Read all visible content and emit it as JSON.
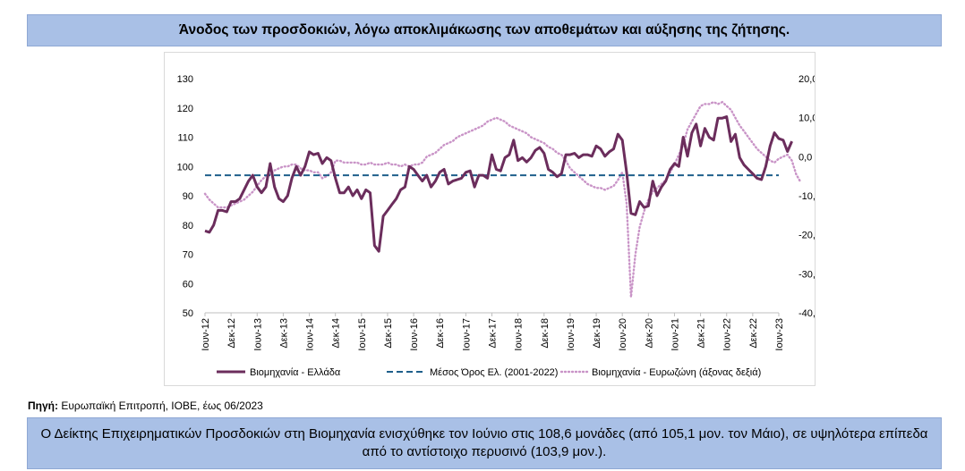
{
  "title": "Άνοδος των προσδοκιών, λόγω αποκλιμάκωσης των αποθεμάτων και αύξησης της ζήτησης.",
  "source_label": "Πηγή:",
  "source_text": "Ευρωπαϊκή Επιτροπή, ΙΟΒΕ, έως 06/2023",
  "summary": "Ο Δείκτης Επιχειρηματικών Προσδοκιών στη Βιομηχανία ενισχύθηκε τον Ιούνιο στις 108,6 μονάδες (από 105,1 μον. τον Μάιο), σε υψηλότερα επίπεδα από το αντίστοιχο περυσινό (103,9 μον.).",
  "colors": {
    "greece": "#6b2d5c",
    "mean": "#1f5f8b",
    "eurozone": "#c994c7",
    "bar_bg": "#a9c0e6"
  },
  "chart_data": {
    "type": "line",
    "x_start": "Ιουν-12",
    "x_end": "Ιουν-23",
    "x_tick_labels": [
      "Ιουν-12",
      "Δεκ-12",
      "Ιουν-13",
      "Δεκ-13",
      "Ιουν-14",
      "Δεκ-14",
      "Ιουν-15",
      "Δεκ-15",
      "Ιουν-16",
      "Δεκ-16",
      "Ιουν-17",
      "Δεκ-17",
      "Ιουν-18",
      "Δεκ-18",
      "Ιουν-19",
      "Δεκ-19",
      "Ιουν-20",
      "Δεκ-20",
      "Ιουν-21",
      "Δεκ-21",
      "Ιουν-22",
      "Δεκ-22",
      "Ιουν-23"
    ],
    "y_left": {
      "min": 50,
      "max": 130,
      "step": 10,
      "ticks": [
        "130",
        "120",
        "110",
        "100",
        "90",
        "80",
        "70",
        "60",
        "50"
      ]
    },
    "y_right": {
      "min": -40,
      "max": 20,
      "step": 10,
      "ticks": [
        "20,0",
        "10,0",
        "0,0",
        "-10,0",
        "-20,0",
        "-30,0",
        "-40,0"
      ]
    },
    "grid": false,
    "legend_position": "bottom",
    "series": [
      {
        "name": "Βιομηχανία  - Ελλάδα",
        "axis": "left",
        "style": "solid",
        "values": [
          78,
          77.5,
          80,
          85,
          85,
          84.5,
          88,
          88,
          89,
          92,
          95,
          97,
          93,
          91,
          93,
          101,
          93,
          89,
          88,
          90,
          96,
          100,
          97,
          100,
          105,
          104,
          104.5,
          101,
          103,
          102,
          96,
          91,
          91,
          93,
          90,
          92,
          89,
          92,
          91,
          73,
          71,
          83,
          85,
          87,
          89,
          92,
          93,
          100,
          99,
          97,
          95,
          97,
          93,
          95,
          98,
          99,
          94,
          95,
          95.5,
          96,
          98,
          98.5,
          93,
          97,
          97,
          96,
          104,
          99,
          98.5,
          103,
          104,
          109,
          102,
          103,
          101.5,
          103,
          105.5,
          106.5,
          104.5,
          99,
          98,
          96.5,
          97.5,
          104,
          104,
          104.5,
          103,
          104,
          104,
          103.5,
          107,
          106,
          103.5,
          105,
          106,
          111,
          109,
          98,
          84,
          83.5,
          88,
          86,
          86.5,
          95,
          90,
          93,
          95,
          99,
          101,
          100,
          110,
          103.5,
          111.5,
          114.5,
          107,
          113,
          110,
          109,
          116.5,
          116.5,
          117,
          108.5,
          111,
          103,
          100.5,
          99,
          97.5,
          96,
          95.5,
          100,
          107,
          111.5,
          109.5,
          109,
          105.1,
          108.6
        ]
      },
      {
        "name": "Μέσος Όρος Ελ. (2001-2022)",
        "axis": "left",
        "style": "dashed",
        "value": 97
      },
      {
        "name": "Βιομηχανία - Ευρωζώνη (άξονας δεξιά)",
        "axis": "right",
        "style": "dotted",
        "values": [
          -9.5,
          -11,
          -12,
          -13,
          -13,
          -13,
          -12.5,
          -12,
          -11.5,
          -11,
          -10,
          -9,
          -7.5,
          -6,
          -5,
          -4.5,
          -3.5,
          -3,
          -2.5,
          -2.5,
          -2,
          -2,
          -3,
          -3.5,
          -3.5,
          -4,
          -4,
          -5.5,
          -5,
          -4,
          -1,
          -1,
          -1.5,
          -1.5,
          -1.5,
          -1.5,
          -2,
          -2,
          -1.5,
          -2,
          -2,
          -2,
          -1.5,
          -2,
          -2,
          -2.5,
          -2,
          -2.5,
          -2,
          -2,
          -1.5,
          0,
          0.5,
          1,
          2,
          3,
          3.5,
          4,
          5,
          5.5,
          6,
          6.5,
          7,
          7.5,
          8,
          9,
          9.5,
          10,
          9.5,
          9,
          8,
          7.5,
          7,
          6.5,
          6,
          5,
          4.5,
          4,
          3.5,
          2.5,
          2,
          1,
          0.5,
          -1,
          -3,
          -4,
          -5,
          -6,
          -7,
          -7.5,
          -8,
          -8,
          -8.5,
          -8,
          -7.5,
          -6,
          -4,
          -12,
          -36,
          -25,
          -18,
          -14,
          -11,
          -9,
          -8,
          -7,
          -6,
          -4,
          -2,
          0.5,
          3,
          7,
          9,
          11,
          13,
          13.5,
          13.5,
          14,
          13.5,
          14,
          13,
          12,
          10,
          8,
          6.5,
          5,
          3.5,
          2,
          1,
          0,
          -1,
          -1.5,
          -0.5,
          0,
          0.5,
          -1,
          -4.5,
          -6.5
        ]
      }
    ]
  }
}
